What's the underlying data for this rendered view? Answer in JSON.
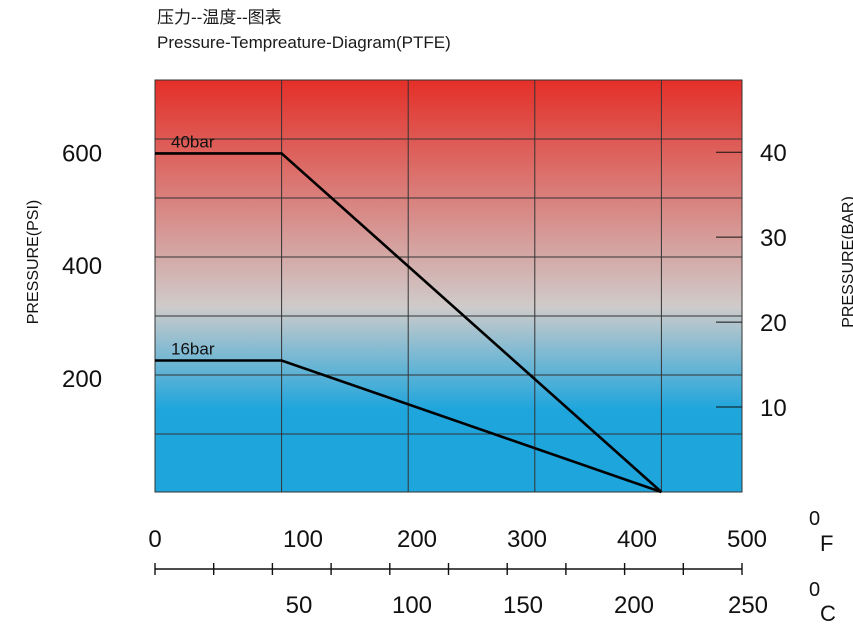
{
  "chart_data": {
    "type": "line",
    "title_cn": "压力--温度--图表",
    "title": "Pressure-Tempreature-Diagram(PTFE)",
    "ylabel_left": "PRESSURE(PSI)",
    "ylabel_right": "PRESSURE(BAR)",
    "x_unit_top": "0F",
    "x_unit_top_main": "F",
    "x_unit_top_sup": "0",
    "x_unit_bottom_main": "C",
    "x_unit_bottom_sup": "0",
    "x_top_ticks": [
      "0",
      "100",
      "200",
      "300",
      "400",
      "500"
    ],
    "x_top_range": [
      0,
      500
    ],
    "x_bottom_ticks": [
      "50",
      "100",
      "150",
      "200",
      "250"
    ],
    "x_bottom_range": [
      0,
      250
    ],
    "y_left_ticks": [
      "200",
      "400",
      "600"
    ],
    "y_left_range": [
      0,
      730
    ],
    "y_right_ticks": [
      "10",
      "20",
      "30",
      "40"
    ],
    "y_right_range": [
      0,
      48.5
    ],
    "grid": true,
    "background_colors": {
      "top": "#e42f28",
      "middle": "#cfcbca",
      "bottom": "#1ea5dc"
    },
    "series": [
      {
        "name": "40bar",
        "x_F": [
          0,
          100,
          400
        ],
        "y_psi": [
          600,
          600,
          0
        ]
      },
      {
        "name": "16bar",
        "x_F": [
          0,
          100,
          400
        ],
        "y_psi": [
          233,
          233,
          0
        ]
      }
    ]
  }
}
